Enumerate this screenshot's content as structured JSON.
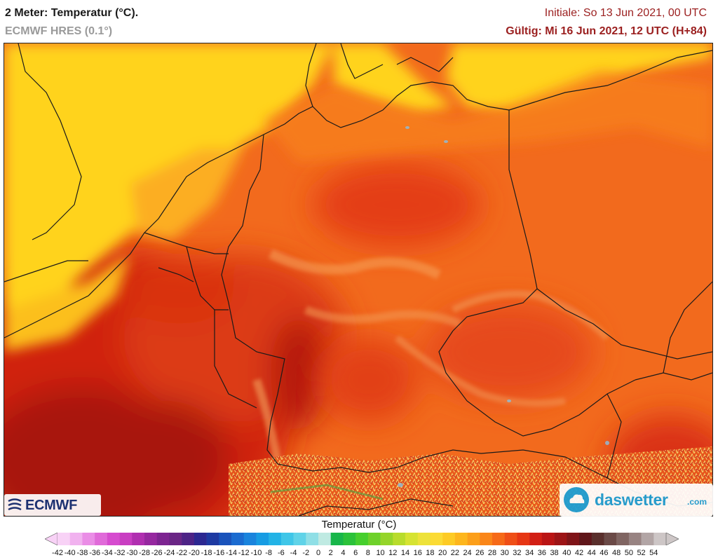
{
  "header": {
    "title": "2 Meter: Temperatur (°C).",
    "model": "ECMWF HRES (0.1°)",
    "initial": "Initiale: So 13 Jun 2021, 00 UTC",
    "valid": "Gültig: Mi 16 Jun 2021, 12 UTC (H+84)"
  },
  "logos": {
    "ecmwf": "ECMWF",
    "daswetter": "daswetter",
    "daswetter_tld": ".com"
  },
  "map": {
    "region": "Germany and surroundings",
    "temperature_palette": {
      "cool_yellow": "#ffd21f",
      "warm_orange": "#f56a1c",
      "hot_red": "#e03012",
      "very_hot_red": "#c81a0f",
      "extreme_darkred": "#a40f10",
      "mountain_highlight": "#f2c25a",
      "border_color": "#1a1a1a"
    }
  },
  "legend": {
    "title": "Temperatur (°C)",
    "ticks": [
      "-42",
      "-40",
      "-38",
      "-36",
      "-34",
      "-32",
      "-30",
      "-28",
      "-26",
      "-24",
      "-22",
      "-20",
      "-18",
      "-16",
      "-14",
      "-12",
      "-10",
      "-8",
      "-6",
      "-4",
      "-2",
      "0",
      "2",
      "4",
      "6",
      "8",
      "10",
      "12",
      "14",
      "16",
      "18",
      "20",
      "22",
      "24",
      "26",
      "28",
      "30",
      "32",
      "34",
      "36",
      "38",
      "40",
      "42",
      "44",
      "46",
      "48",
      "50",
      "52",
      "54"
    ],
    "colors": [
      "#f8d2f6",
      "#f1b2ef",
      "#ea8de6",
      "#e06ad9",
      "#d64bcf",
      "#c93ec2",
      "#b02fb0",
      "#9628a0",
      "#7d2491",
      "#6a2585",
      "#4d2386",
      "#2c2891",
      "#1e3aa2",
      "#1a53bb",
      "#1b6bd0",
      "#1a84dd",
      "#179ce3",
      "#23b3e6",
      "#3fc6e8",
      "#60d3e8",
      "#8fdfe6",
      "#bfeae2",
      "#18b64a",
      "#2bc23a",
      "#46cf2d",
      "#6ed12a",
      "#95d52a",
      "#b8dc2c",
      "#d6e332",
      "#ede23a",
      "#fbdb35",
      "#fdcb25",
      "#fdb61d",
      "#fc9f1a",
      "#fa8619",
      "#f66a18",
      "#ef4f17",
      "#e63614",
      "#d21f14",
      "#ba1414",
      "#9d1416",
      "#7f1418",
      "#60161a",
      "#5a2f2c",
      "#6b4a47",
      "#806562",
      "#988382",
      "#b2a5a5",
      "#cdc6c6"
    ]
  }
}
